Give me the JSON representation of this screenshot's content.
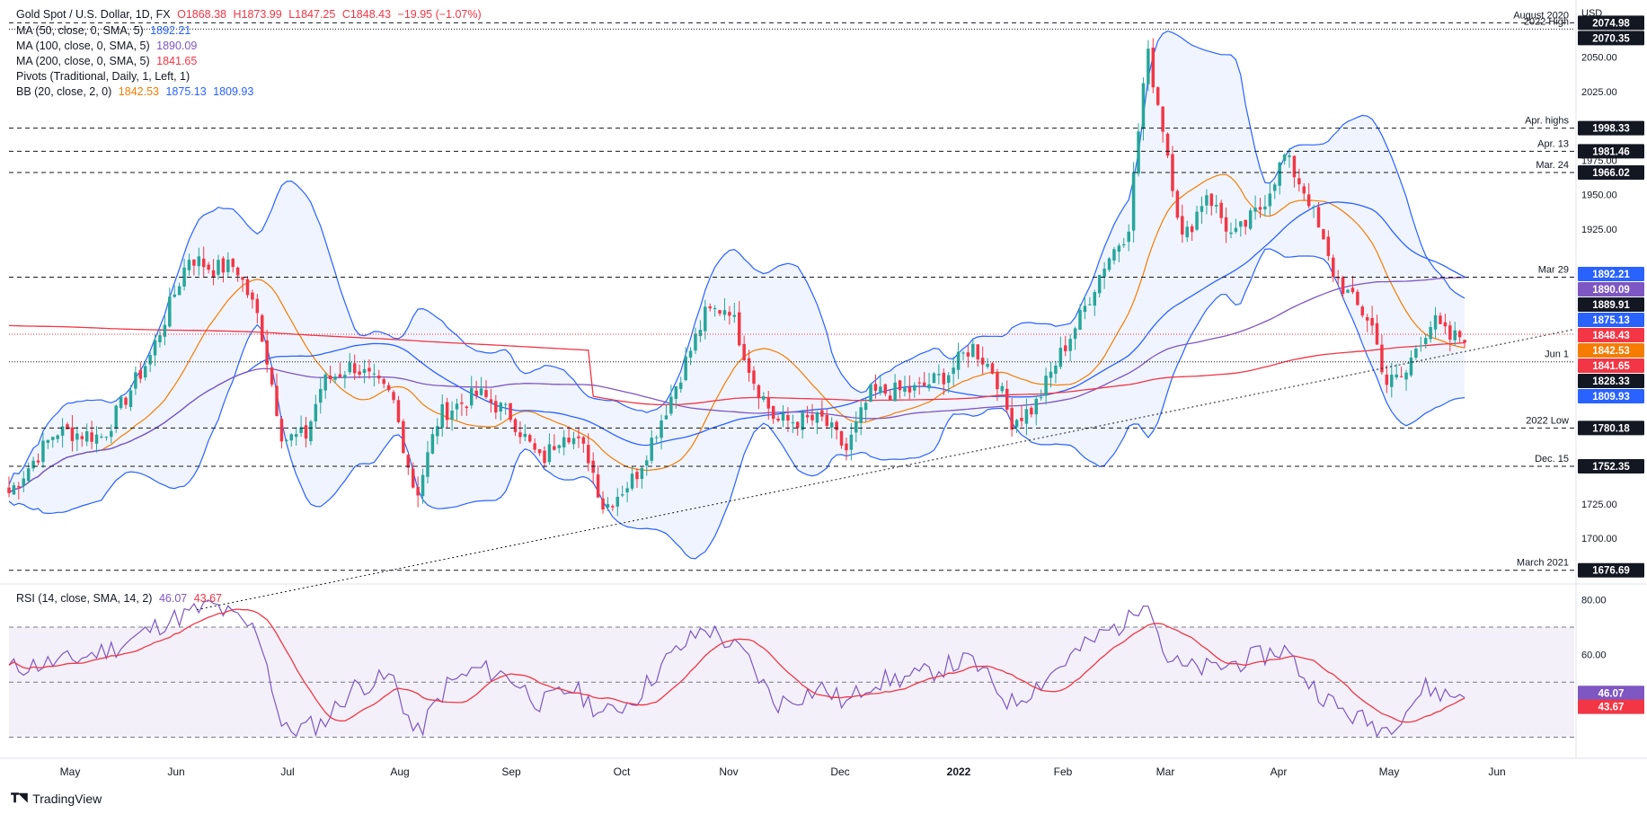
{
  "header": {
    "symbol": "Gold Spot / U.S. Dollar, 1D, FX",
    "ohlc": {
      "open": "O1868.38",
      "high": "H1873.99",
      "low": "L1847.25",
      "close": "C1848.43",
      "change": "−19.95 (−1.07%)"
    }
  },
  "indicators": [
    {
      "label": "MA (50, close, 0, SMA, 5)",
      "value": "1892.21",
      "color": "#2962ff"
    },
    {
      "label": "MA (100, close, 0, SMA, 5)",
      "value": "1890.09",
      "color": "#7e57c2"
    },
    {
      "label": "MA (200, close, 0, SMA, 5)",
      "value": "1841.65",
      "color": "#f23645"
    },
    {
      "label": "Pivots (Traditional, Daily, 1, Left, 1)",
      "value": "",
      "color": "#131722"
    },
    {
      "label": "BB (20, close, 2, 0)",
      "values": [
        "1842.53",
        "1875.13",
        "1809.93"
      ],
      "colors": [
        "#f57c00",
        "#2962ff",
        "#2962ff"
      ]
    }
  ],
  "rsi_label": {
    "label": "RSI (14, close, SMA, 14, 2)",
    "values": [
      "46.07",
      "43.67"
    ],
    "colors": [
      "#7e57c2",
      "#f23645"
    ]
  },
  "currency": "USD",
  "price_axis": {
    "ticks": [
      "2050.00",
      "2025.00",
      "1975.00",
      "1950.00",
      "1925.00",
      "1725.00",
      "1700.00"
    ],
    "tick_values": [
      2050,
      2025,
      1975,
      1950,
      1925,
      1725,
      1700
    ]
  },
  "rsi_axis": {
    "ticks": [
      "80.00",
      "60.00"
    ],
    "tick_values": [
      80,
      60
    ]
  },
  "price_labels": [
    {
      "text": "2074.98",
      "value": 2074.98,
      "bg": "#131722"
    },
    {
      "text": "2070.35",
      "value": 2070.35,
      "bg": "#131722"
    },
    {
      "text": "1998.33",
      "value": 1998.33,
      "bg": "#131722"
    },
    {
      "text": "1981.46",
      "value": 1981.46,
      "bg": "#131722"
    },
    {
      "text": "1966.02",
      "value": 1966.02,
      "bg": "#131722"
    },
    {
      "text": "1892.21",
      "value": 1892.21,
      "bg": "#2962ff"
    },
    {
      "text": "1890.09",
      "value": 1890.09,
      "bg": "#7e57c2"
    },
    {
      "text": "1889.91",
      "value": 1889.91,
      "bg": "#131722"
    },
    {
      "text": "1875.13",
      "value": 1875.13,
      "bg": "#2962ff"
    },
    {
      "text": "1848.43",
      "value": 1848.43,
      "bg": "#f23645"
    },
    {
      "text": "1842.53",
      "value": 1842.53,
      "bg": "#f57c00"
    },
    {
      "text": "1841.65",
      "value": 1841.65,
      "bg": "#f23645"
    },
    {
      "text": "1828.33",
      "value": 1828.33,
      "bg": "#131722"
    },
    {
      "text": "1809.93",
      "value": 1809.93,
      "bg": "#2962ff"
    },
    {
      "text": "1780.18",
      "value": 1780.18,
      "bg": "#131722"
    },
    {
      "text": "1752.35",
      "value": 1752.35,
      "bg": "#131722"
    },
    {
      "text": "1676.69",
      "value": 1676.69,
      "bg": "#131722"
    }
  ],
  "rsi_labels": [
    {
      "text": "46.07",
      "value": 46.07,
      "bg": "#7e57c2"
    },
    {
      "text": "43.67",
      "value": 43.67,
      "bg": "#f23645"
    }
  ],
  "annotations": [
    {
      "text": "August 2020",
      "value": 2074.98
    },
    {
      "text": "2022 High",
      "value": 2070.35
    },
    {
      "text": "Apr. highs",
      "value": 1998.33
    },
    {
      "text": "Apr. 13",
      "value": 1981.46
    },
    {
      "text": "Mar. 24",
      "value": 1966.02
    },
    {
      "text": "Mar 29",
      "value": 1889.91
    },
    {
      "text": "Jun 1",
      "value": 1828.33
    },
    {
      "text": "2022 Low",
      "value": 1780.18
    },
    {
      "text": "Dec. 15",
      "value": 1752.35
    },
    {
      "text": "March 2021",
      "value": 1676.69
    }
  ],
  "time_axis": [
    "May",
    "Jun",
    "Jul",
    "Aug",
    "Sep",
    "Oct",
    "Nov",
    "Dec",
    "2022",
    "Feb",
    "Mar",
    "Apr",
    "May",
    "Jun"
  ],
  "branding": "TradingView",
  "chart_data": {
    "type": "candlestick",
    "title": "Gold Spot / U.S. Dollar, 1D, FX",
    "x_range": [
      "2021-04",
      "2022-06"
    ],
    "ylim": [
      1668,
      2085
    ],
    "rsi_ylim": [
      23,
      85
    ],
    "rsi_bands": [
      70,
      50,
      30
    ],
    "keypoints": [
      {
        "t": 0.0,
        "p": 1733
      },
      {
        "t": 0.03,
        "p": 1778
      },
      {
        "t": 0.06,
        "p": 1774
      },
      {
        "t": 0.09,
        "p": 1832
      },
      {
        "t": 0.115,
        "p": 1905
      },
      {
        "t": 0.13,
        "p": 1896
      },
      {
        "t": 0.145,
        "p": 1898
      },
      {
        "t": 0.16,
        "p": 1858
      },
      {
        "t": 0.175,
        "p": 1772
      },
      {
        "t": 0.19,
        "p": 1775
      },
      {
        "t": 0.2,
        "p": 1813
      },
      {
        "t": 0.22,
        "p": 1826
      },
      {
        "t": 0.245,
        "p": 1802
      },
      {
        "t": 0.26,
        "p": 1730
      },
      {
        "t": 0.275,
        "p": 1790
      },
      {
        "t": 0.3,
        "p": 1805
      },
      {
        "t": 0.32,
        "p": 1790
      },
      {
        "t": 0.34,
        "p": 1755
      },
      {
        "t": 0.355,
        "p": 1780
      },
      {
        "t": 0.37,
        "p": 1760
      },
      {
        "t": 0.38,
        "p": 1722
      },
      {
        "t": 0.4,
        "p": 1745
      },
      {
        "t": 0.42,
        "p": 1795
      },
      {
        "t": 0.445,
        "p": 1863
      },
      {
        "t": 0.46,
        "p": 1869
      },
      {
        "t": 0.475,
        "p": 1817
      },
      {
        "t": 0.49,
        "p": 1785
      },
      {
        "t": 0.52,
        "p": 1786
      },
      {
        "t": 0.535,
        "p": 1764
      },
      {
        "t": 0.55,
        "p": 1805
      },
      {
        "t": 0.58,
        "p": 1808
      },
      {
        "t": 0.6,
        "p": 1820
      },
      {
        "t": 0.615,
        "p": 1840
      },
      {
        "t": 0.63,
        "p": 1820
      },
      {
        "t": 0.64,
        "p": 1785
      },
      {
        "t": 0.655,
        "p": 1795
      },
      {
        "t": 0.67,
        "p": 1830
      },
      {
        "t": 0.685,
        "p": 1862
      },
      {
        "t": 0.7,
        "p": 1900
      },
      {
        "t": 0.715,
        "p": 1925
      },
      {
        "t": 0.727,
        "p": 2055
      },
      {
        "t": 0.738,
        "p": 1995
      },
      {
        "t": 0.75,
        "p": 1915
      },
      {
        "t": 0.765,
        "p": 1952
      },
      {
        "t": 0.782,
        "p": 1918
      },
      {
        "t": 0.8,
        "p": 1941
      },
      {
        "t": 0.815,
        "p": 1978
      },
      {
        "t": 0.83,
        "p": 1948
      },
      {
        "t": 0.845,
        "p": 1895
      },
      {
        "t": 0.86,
        "p": 1870
      },
      {
        "t": 0.87,
        "p": 1858
      },
      {
        "t": 0.88,
        "p": 1813
      },
      {
        "t": 0.892,
        "p": 1818
      },
      {
        "t": 0.9,
        "p": 1843
      },
      {
        "t": 0.91,
        "p": 1858
      },
      {
        "t": 0.92,
        "p": 1845
      },
      {
        "t": 0.93,
        "p": 1848
      }
    ],
    "rsi_keypoints": [
      {
        "t": 0.0,
        "r": 55
      },
      {
        "t": 0.04,
        "r": 58
      },
      {
        "t": 0.07,
        "r": 63
      },
      {
        "t": 0.1,
        "r": 72
      },
      {
        "t": 0.13,
        "r": 78
      },
      {
        "t": 0.16,
        "r": 68
      },
      {
        "t": 0.175,
        "r": 32
      },
      {
        "t": 0.2,
        "r": 35
      },
      {
        "t": 0.22,
        "r": 48
      },
      {
        "t": 0.245,
        "r": 52
      },
      {
        "t": 0.26,
        "r": 30
      },
      {
        "t": 0.28,
        "r": 49
      },
      {
        "t": 0.3,
        "r": 55
      },
      {
        "t": 0.32,
        "r": 52
      },
      {
        "t": 0.34,
        "r": 42
      },
      {
        "t": 0.36,
        "r": 48
      },
      {
        "t": 0.38,
        "r": 38
      },
      {
        "t": 0.4,
        "r": 44
      },
      {
        "t": 0.42,
        "r": 58
      },
      {
        "t": 0.445,
        "r": 70
      },
      {
        "t": 0.47,
        "r": 60
      },
      {
        "t": 0.49,
        "r": 42
      },
      {
        "t": 0.52,
        "r": 48
      },
      {
        "t": 0.535,
        "r": 42
      },
      {
        "t": 0.55,
        "r": 50
      },
      {
        "t": 0.58,
        "r": 52
      },
      {
        "t": 0.6,
        "r": 56
      },
      {
        "t": 0.615,
        "r": 58
      },
      {
        "t": 0.64,
        "r": 42
      },
      {
        "t": 0.655,
        "r": 48
      },
      {
        "t": 0.68,
        "r": 60
      },
      {
        "t": 0.7,
        "r": 68
      },
      {
        "t": 0.715,
        "r": 72
      },
      {
        "t": 0.727,
        "r": 83
      },
      {
        "t": 0.738,
        "r": 60
      },
      {
        "t": 0.75,
        "r": 55
      },
      {
        "t": 0.77,
        "r": 55
      },
      {
        "t": 0.79,
        "r": 58
      },
      {
        "t": 0.815,
        "r": 62
      },
      {
        "t": 0.83,
        "r": 50
      },
      {
        "t": 0.85,
        "r": 40
      },
      {
        "t": 0.87,
        "r": 35
      },
      {
        "t": 0.88,
        "r": 33
      },
      {
        "t": 0.892,
        "r": 40
      },
      {
        "t": 0.905,
        "r": 48
      },
      {
        "t": 0.92,
        "r": 45
      },
      {
        "t": 0.93,
        "r": 46
      }
    ],
    "horizontal_levels": [
      {
        "name": "August 2020",
        "value": 2074.98,
        "style": "dashed"
      },
      {
        "name": "2022 High",
        "value": 2070.35,
        "style": "dotted"
      },
      {
        "name": "Apr. highs",
        "value": 1998.33,
        "style": "dashed"
      },
      {
        "name": "Apr. 13",
        "value": 1981.46,
        "style": "dashed"
      },
      {
        "name": "Mar. 24",
        "value": 1966.02,
        "style": "dashed"
      },
      {
        "name": "Mar 29",
        "value": 1889.91,
        "style": "dashed"
      },
      {
        "name": "Jun 1",
        "value": 1828.33,
        "style": "dotted"
      },
      {
        "name": "2022 Low",
        "value": 1780.18,
        "style": "dashed"
      },
      {
        "name": "Dec. 15",
        "value": 1752.35,
        "style": "dashed"
      },
      {
        "name": "March 2021",
        "value": 1676.69,
        "style": "dashed"
      }
    ],
    "trendline": {
      "from": {
        "t": 0.12,
        "p": 1648
      },
      "to": {
        "t": 1.0,
        "p": 1852
      }
    },
    "colors": {
      "up": "#26a69a",
      "down": "#f23645",
      "ma50": "#2962ff",
      "ma100": "#7e57c2",
      "ma200": "#f23645",
      "bb_basis": "#f57c00",
      "bb_band": "#2962ff",
      "rsi": "#7e57c2",
      "rsi_ma": "#f23645"
    }
  }
}
